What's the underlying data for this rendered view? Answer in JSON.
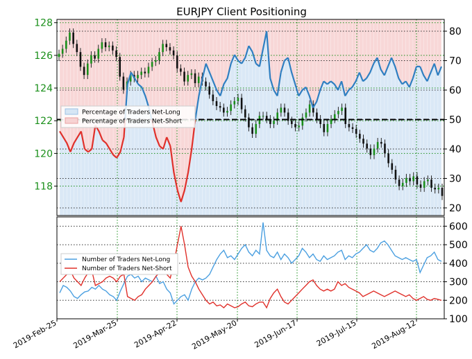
{
  "chart_data": [
    {
      "type": "candlestick+line",
      "title": "EURJPY Client Positioning",
      "x_ticks": [
        "2019-Feb-25",
        "2019-Mar-25",
        "2019-Apr-22",
        "2019-May-20",
        "2019-Jun-17",
        "2019-Jul-15",
        "2019-Aug-12"
      ],
      "price_axis": {
        "side": "left",
        "ylim": [
          116.2,
          128.2
        ],
        "ticks": [
          "118",
          "120",
          "122",
          "124",
          "126",
          "128"
        ]
      },
      "percent_axis": {
        "side": "right",
        "ylim": [
          17.4,
          84
        ],
        "ticks": [
          "20",
          "30",
          "40",
          "50",
          "60",
          "70",
          "80"
        ]
      },
      "legend": {
        "placement": "left",
        "items": [
          "Percentage of Traders Net-Long",
          "Percentage of Traders Net-Short"
        ]
      },
      "colors": {
        "price_axis": "#1a8f1a",
        "net_long": "#2f7fc1",
        "net_short": "#e0302a",
        "long_fill": "#d6e6f5",
        "short_fill": "#f7d3d3",
        "candle": "#1a8f1a"
      },
      "price_close": [
        126.1,
        126.4,
        126.9,
        127.4,
        126.7,
        126.2,
        125.3,
        124.8,
        125.5,
        126,
        125.8,
        126.4,
        126.8,
        126.5,
        126.6,
        126.3,
        125.9,
        124.7,
        123.9,
        124.4,
        124.8,
        124.6,
        124.8,
        125,
        124.9,
        125.3,
        125.6,
        125.7,
        126.2,
        126.7,
        126.5,
        126.3,
        126,
        125.2,
        125,
        124.4,
        124.8,
        124.9,
        124.3,
        124.7,
        124.4,
        124.1,
        123.6,
        123.2,
        122.9,
        122.8,
        122.5,
        122.6,
        123,
        123.2,
        123.4,
        122.7,
        122.2,
        121.6,
        121.2,
        121.8,
        122.3,
        122.3,
        122.1,
        121.8,
        122,
        122.5,
        122.8,
        122.5,
        122,
        121.8,
        121.6,
        121.7,
        122.2,
        122.5,
        123,
        122.5,
        122.1,
        121.8,
        121.3,
        121.8,
        122.1,
        122.4,
        122.6,
        122.8,
        121.8,
        121.6,
        121.5,
        121.2,
        120.9,
        120.6,
        120.3,
        119.9,
        120.3,
        120.7,
        120.6,
        120,
        119.4,
        119,
        118.4,
        118,
        118.2,
        118.5,
        118.3,
        118.6,
        118.1,
        117.9,
        118.3,
        118.4,
        117.9,
        117.8,
        117.9,
        117.4
      ],
      "percent_net_long": [
        46,
        44,
        42,
        39,
        42,
        44,
        46,
        40,
        39,
        40,
        48,
        46,
        43,
        42,
        40,
        38,
        37,
        39,
        44,
        62,
        66,
        64,
        62,
        61,
        58,
        54,
        49,
        44,
        41,
        40,
        44,
        41,
        32,
        26,
        22,
        26,
        32,
        40,
        50,
        58,
        64,
        69,
        66,
        63,
        60,
        58,
        62,
        64,
        69,
        72,
        70,
        69,
        71,
        75,
        73,
        69,
        68,
        74,
        80,
        64,
        60,
        58,
        66,
        70,
        71,
        66,
        62,
        58,
        60,
        61,
        58,
        54,
        56,
        60,
        63,
        62,
        63,
        62,
        60,
        63,
        58,
        60,
        61,
        63,
        66,
        63,
        64,
        66,
        69,
        71,
        67,
        65,
        68,
        71,
        68,
        64,
        62,
        63,
        61,
        64,
        68,
        68,
        65,
        63,
        66,
        69,
        65,
        68
      ],
      "series": [
        {
          "name": "Percentage of Traders Net-Long"
        },
        {
          "name": "Percentage of Traders Net-Short"
        }
      ]
    },
    {
      "type": "line",
      "x_ticks": [
        "2019-Feb-25",
        "2019-Mar-25",
        "2019-Apr-22",
        "2019-May-20",
        "2019-Jun-17",
        "2019-Jul-15",
        "2019-Aug-12"
      ],
      "y_axis": {
        "side": "right",
        "ylim": [
          100,
          650
        ],
        "ticks": [
          "100",
          "200",
          "300",
          "400",
          "500",
          "600"
        ]
      },
      "legend": {
        "placement": "left",
        "items": [
          "Number of Traders Net-Long",
          "Number of Traders Net-Short"
        ]
      },
      "series": [
        {
          "name": "Number of Traders Net-Long",
          "color": "#4a9fe0",
          "values": [
            240,
            280,
            270,
            250,
            220,
            210,
            230,
            245,
            250,
            270,
            260,
            280,
            260,
            250,
            230,
            220,
            200,
            250,
            290,
            330,
            340,
            320,
            330,
            300,
            320,
            310,
            300,
            330,
            290,
            300,
            260,
            240,
            180,
            200,
            220,
            230,
            200,
            260,
            300,
            320,
            310,
            320,
            340,
            380,
            420,
            450,
            470,
            430,
            440,
            420,
            450,
            480,
            500,
            460,
            440,
            470,
            450,
            620,
            470,
            440,
            430,
            460,
            420,
            450,
            430,
            400,
            420,
            440,
            480,
            460,
            430,
            450,
            420,
            410,
            440,
            420,
            430,
            440,
            460,
            470,
            420,
            440,
            430,
            450,
            460,
            480,
            500,
            470,
            460,
            480,
            510,
            520,
            500,
            470,
            440,
            430,
            420,
            430,
            420,
            410,
            420,
            350,
            390,
            430,
            440,
            460,
            420,
            410
          ]
        },
        {
          "name": "Number of Traders Net-Short",
          "color": "#e0302a",
          "values": [
            300,
            320,
            340,
            360,
            320,
            300,
            280,
            320,
            350,
            360,
            280,
            290,
            300,
            320,
            330,
            320,
            300,
            330,
            340,
            220,
            210,
            200,
            220,
            230,
            260,
            280,
            300,
            330,
            350,
            360,
            340,
            320,
            400,
            500,
            600,
            500,
            380,
            330,
            300,
            260,
            230,
            200,
            180,
            190,
            170,
            175,
            160,
            180,
            170,
            160,
            165,
            180,
            190,
            170,
            165,
            180,
            190,
            190,
            160,
            210,
            240,
            260,
            220,
            190,
            180,
            200,
            220,
            240,
            260,
            280,
            300,
            310,
            280,
            260,
            250,
            260,
            250,
            260,
            300,
            280,
            290,
            270,
            260,
            250,
            240,
            220,
            230,
            240,
            250,
            240,
            230,
            220,
            230,
            240,
            250,
            240,
            230,
            220,
            230,
            210,
            200,
            210,
            220,
            205,
            200,
            210,
            205,
            200
          ]
        }
      ]
    }
  ]
}
